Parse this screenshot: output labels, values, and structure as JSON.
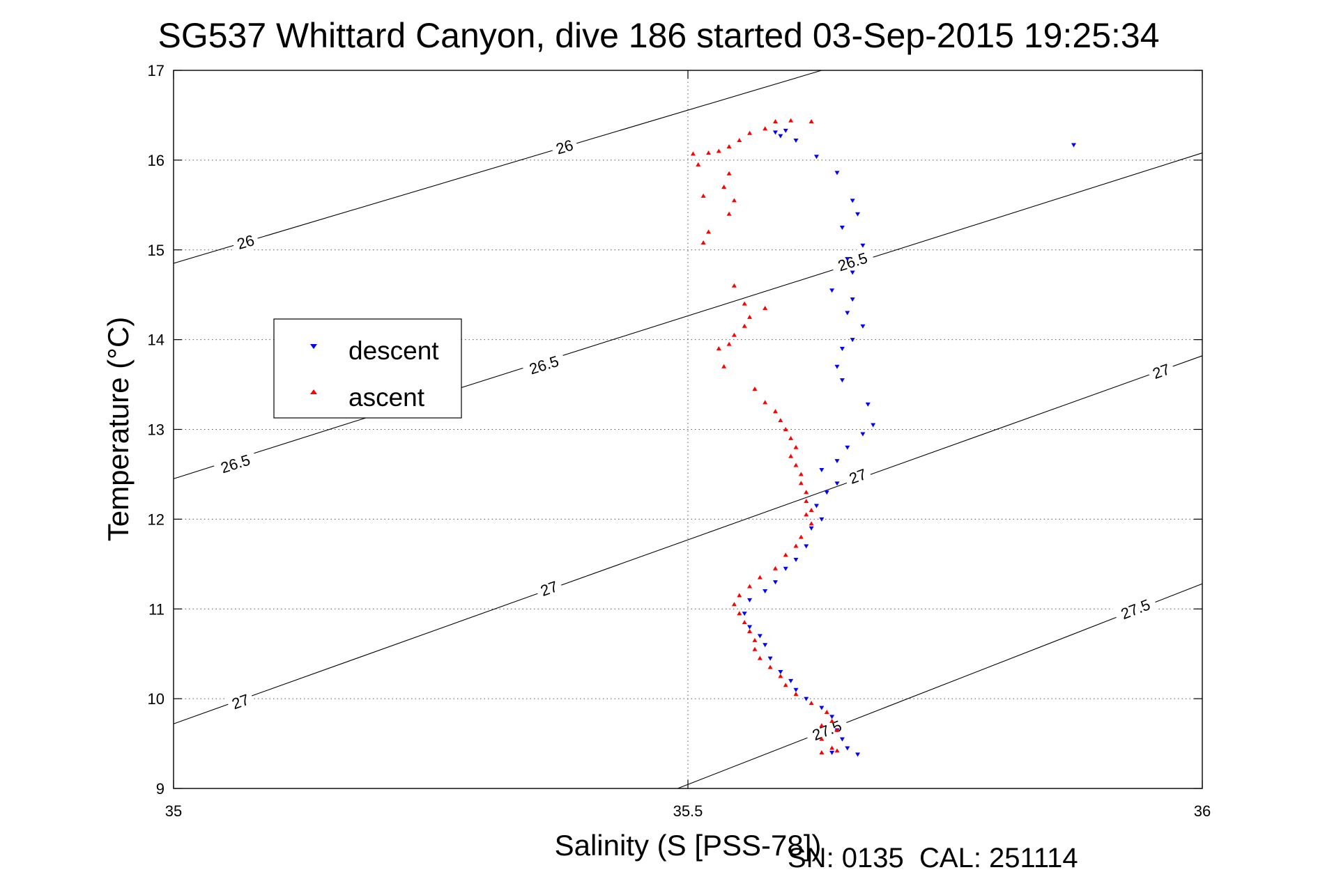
{
  "chart_data": {
    "type": "scatter",
    "title": "SG537 Whittard Canyon, dive 186 started 03-Sep-2015 19:25:34",
    "xlabel": "Salinity (S [PSS-78])",
    "ylabel": "Temperature (°C)",
    "xlim": [
      35,
      36
    ],
    "ylim": [
      9,
      17
    ],
    "xticks": [
      "35",
      "35.5",
      "36"
    ],
    "yticks": [
      "9",
      "10",
      "11",
      "12",
      "13",
      "14",
      "15",
      "16",
      "17"
    ],
    "grid": true,
    "legend_position": "left",
    "footer": "SN: 0135  CAL: 251114",
    "series": [
      {
        "name": "descent",
        "color": "#0000ff",
        "marker": "down-triangle",
        "points": [
          [
            35.875,
            16.17
          ],
          [
            35.585,
            16.31
          ],
          [
            35.595,
            16.33
          ],
          [
            35.59,
            16.27
          ],
          [
            35.605,
            16.22
          ],
          [
            35.625,
            16.04
          ],
          [
            35.645,
            15.86
          ],
          [
            35.66,
            15.55
          ],
          [
            35.665,
            15.4
          ],
          [
            35.65,
            15.25
          ],
          [
            35.67,
            15.05
          ],
          [
            35.655,
            14.9
          ],
          [
            35.66,
            14.75
          ],
          [
            35.64,
            14.55
          ],
          [
            35.66,
            14.45
          ],
          [
            35.655,
            14.3
          ],
          [
            35.67,
            14.15
          ],
          [
            35.66,
            14.0
          ],
          [
            35.65,
            13.9
          ],
          [
            35.645,
            13.7
          ],
          [
            35.65,
            13.55
          ],
          [
            35.675,
            13.28
          ],
          [
            35.68,
            13.05
          ],
          [
            35.67,
            12.95
          ],
          [
            35.655,
            12.8
          ],
          [
            35.645,
            12.65
          ],
          [
            35.63,
            12.55
          ],
          [
            35.645,
            12.4
          ],
          [
            35.635,
            12.3
          ],
          [
            35.625,
            12.15
          ],
          [
            35.63,
            12.0
          ],
          [
            35.62,
            11.9
          ],
          [
            35.615,
            11.7
          ],
          [
            35.605,
            11.55
          ],
          [
            35.595,
            11.45
          ],
          [
            35.585,
            11.3
          ],
          [
            35.575,
            11.2
          ],
          [
            35.56,
            11.1
          ],
          [
            35.555,
            10.95
          ],
          [
            35.56,
            10.8
          ],
          [
            35.57,
            10.7
          ],
          [
            35.575,
            10.6
          ],
          [
            35.58,
            10.45
          ],
          [
            35.59,
            10.3
          ],
          [
            35.6,
            10.2
          ],
          [
            35.605,
            10.1
          ],
          [
            35.615,
            10.0
          ],
          [
            35.63,
            9.9
          ],
          [
            35.64,
            9.8
          ],
          [
            35.645,
            9.65
          ],
          [
            35.65,
            9.55
          ],
          [
            35.655,
            9.45
          ],
          [
            35.64,
            9.4
          ],
          [
            35.665,
            9.38
          ]
        ]
      },
      {
        "name": "ascent",
        "color": "#ff0000",
        "marker": "up-triangle",
        "points": [
          [
            35.62,
            16.43
          ],
          [
            35.6,
            16.44
          ],
          [
            35.585,
            16.43
          ],
          [
            35.575,
            16.35
          ],
          [
            35.56,
            16.3
          ],
          [
            35.55,
            16.22
          ],
          [
            35.54,
            16.15
          ],
          [
            35.53,
            16.1
          ],
          [
            35.52,
            16.08
          ],
          [
            35.505,
            16.07
          ],
          [
            35.51,
            15.95
          ],
          [
            35.54,
            15.85
          ],
          [
            35.535,
            15.7
          ],
          [
            35.515,
            15.6
          ],
          [
            35.545,
            15.55
          ],
          [
            35.54,
            15.4
          ],
          [
            35.52,
            15.2
          ],
          [
            35.515,
            15.08
          ],
          [
            35.545,
            14.6
          ],
          [
            35.555,
            14.4
          ],
          [
            35.575,
            14.35
          ],
          [
            35.56,
            14.25
          ],
          [
            35.555,
            14.15
          ],
          [
            35.545,
            14.05
          ],
          [
            35.54,
            13.95
          ],
          [
            35.53,
            13.9
          ],
          [
            35.535,
            13.7
          ],
          [
            35.565,
            13.45
          ],
          [
            35.575,
            13.3
          ],
          [
            35.585,
            13.2
          ],
          [
            35.59,
            13.1
          ],
          [
            35.595,
            13.0
          ],
          [
            35.6,
            12.9
          ],
          [
            35.605,
            12.8
          ],
          [
            35.6,
            12.7
          ],
          [
            35.605,
            12.6
          ],
          [
            35.61,
            12.5
          ],
          [
            35.61,
            12.4
          ],
          [
            35.615,
            12.3
          ],
          [
            35.615,
            12.2
          ],
          [
            35.62,
            12.1
          ],
          [
            35.615,
            12.05
          ],
          [
            35.62,
            11.95
          ],
          [
            35.61,
            11.8
          ],
          [
            35.605,
            11.7
          ],
          [
            35.595,
            11.6
          ],
          [
            35.585,
            11.45
          ],
          [
            35.57,
            11.35
          ],
          [
            35.56,
            11.25
          ],
          [
            35.55,
            11.15
          ],
          [
            35.545,
            11.05
          ],
          [
            35.55,
            10.95
          ],
          [
            35.555,
            10.85
          ],
          [
            35.56,
            10.75
          ],
          [
            35.565,
            10.65
          ],
          [
            35.565,
            10.55
          ],
          [
            35.57,
            10.45
          ],
          [
            35.58,
            10.35
          ],
          [
            35.59,
            10.25
          ],
          [
            35.595,
            10.15
          ],
          [
            35.605,
            10.05
          ],
          [
            35.62,
            9.95
          ],
          [
            35.635,
            9.85
          ],
          [
            35.64,
            9.75
          ],
          [
            35.63,
            9.7
          ],
          [
            35.645,
            9.65
          ],
          [
            35.63,
            9.55
          ],
          [
            35.64,
            9.45
          ],
          [
            35.63,
            9.4
          ],
          [
            35.645,
            9.42
          ]
        ]
      }
    ],
    "contours": [
      {
        "label": "26",
        "points": [
          [
            35,
            14.85
          ],
          [
            35.63,
            17
          ]
        ],
        "label_at": [
          [
            35.07,
            15.09
          ],
          [
            35.38,
            16.15
          ]
        ]
      },
      {
        "label": "26.5",
        "points": [
          [
            35,
            12.45
          ],
          [
            36,
            16.08
          ]
        ],
        "label_at": [
          [
            35.06,
            12.62
          ],
          [
            35.36,
            13.72
          ],
          [
            35.66,
            14.87
          ]
        ]
      },
      {
        "label": "27",
        "points": [
          [
            35,
            9.72
          ],
          [
            36,
            13.82
          ]
        ],
        "label_at": [
          [
            35.065,
            9.97
          ],
          [
            35.365,
            11.23
          ],
          [
            35.665,
            12.48
          ],
          [
            35.96,
            13.65
          ]
        ]
      },
      {
        "label": "27.5",
        "points": [
          [
            35.49,
            9
          ],
          [
            36,
            11.28
          ]
        ],
        "label_at": [
          [
            35.635,
            9.65
          ],
          [
            35.935,
            11.0
          ]
        ]
      }
    ]
  }
}
